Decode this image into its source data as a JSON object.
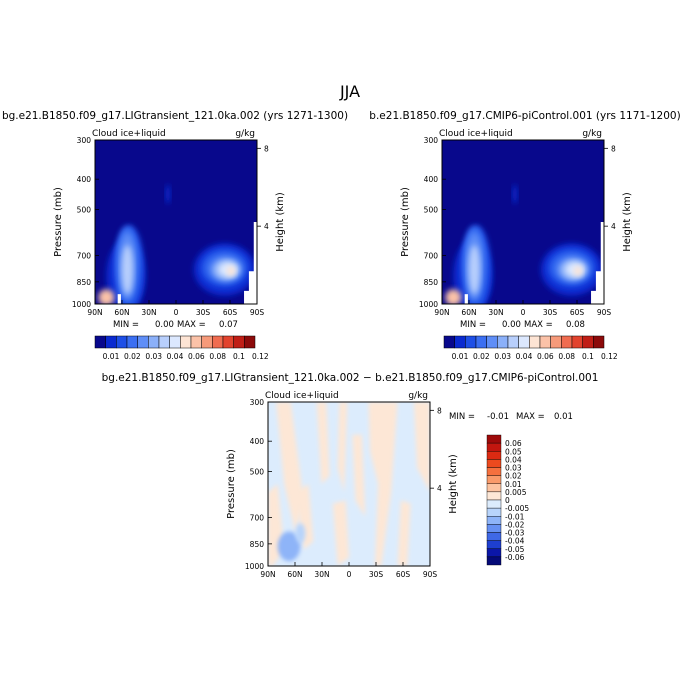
{
  "page": {
    "season": "JJA"
  },
  "chart_data": [
    {
      "type": "heatmap",
      "title": "bg.e21.B1850.f09_g17.LIGtransient_121.0ka.002 (yrs 1271-1300)",
      "field_label": "Cloud ice+liquid",
      "units": "g/kg",
      "ylabel": "Pressure (mb)",
      "y2label": "Height (km)",
      "x_ticks": [
        "90N",
        "60N",
        "30N",
        "0",
        "30S",
        "60S",
        "90S"
      ],
      "y_ticks": [
        "300",
        "400",
        "500",
        "700",
        "850",
        "1000"
      ],
      "y_tick_values": [
        300,
        400,
        500,
        700,
        850,
        1000
      ],
      "ylim": [
        1000,
        300
      ],
      "y_scale": "log",
      "y2_ticks": [
        "8",
        "4"
      ],
      "y2_tick_values": [
        8,
        4
      ],
      "min_label": "MIN =",
      "min_value": "0.00",
      "max_label": "MAX =",
      "max_value": "0.07",
      "colorbar": {
        "labels": [
          "0.01",
          "0.02",
          "0.03",
          "0.04",
          "0.06",
          "0.08",
          "0.1",
          "0.12"
        ],
        "colors": [
          "#08088c",
          "#0a2ad0",
          "#1e4fe6",
          "#3b6ff2",
          "#5f8ef7",
          "#8bb0f9",
          "#b8cffc",
          "#dce8fe",
          "#fde4d4",
          "#fbc2a8",
          "#f69a7a",
          "#f06c50",
          "#e2432e",
          "#c01e16",
          "#8c0a0a"
        ]
      }
    },
    {
      "type": "heatmap",
      "title": "b.e21.B1850.f09_g17.CMIP6-piControl.001 (yrs 1171-1200)",
      "field_label": "Cloud ice+liquid",
      "units": "g/kg",
      "ylabel": "Pressure (mb)",
      "y2label": "Height (km)",
      "x_ticks": [
        "90N",
        "60N",
        "30N",
        "0",
        "30S",
        "60S",
        "90S"
      ],
      "y_ticks": [
        "300",
        "400",
        "500",
        "700",
        "850",
        "1000"
      ],
      "y_tick_values": [
        300,
        400,
        500,
        700,
        850,
        1000
      ],
      "ylim": [
        1000,
        300
      ],
      "y_scale": "log",
      "y2_ticks": [
        "8",
        "4"
      ],
      "y2_tick_values": [
        8,
        4
      ],
      "min_label": "MIN =",
      "min_value": "0.00",
      "max_label": "MAX =",
      "max_value": "0.08",
      "colorbar": {
        "labels": [
          "0.01",
          "0.02",
          "0.03",
          "0.04",
          "0.06",
          "0.08",
          "0.1",
          "0.12"
        ],
        "colors": [
          "#08088c",
          "#0a2ad0",
          "#1e4fe6",
          "#3b6ff2",
          "#5f8ef7",
          "#8bb0f9",
          "#b8cffc",
          "#dce8fe",
          "#fde4d4",
          "#fbc2a8",
          "#f69a7a",
          "#f06c50",
          "#e2432e",
          "#c01e16",
          "#8c0a0a"
        ]
      }
    },
    {
      "type": "heatmap",
      "title": "bg.e21.B1850.f09_g17.LIGtransient_121.0ka.002 − b.e21.B1850.f09_g17.CMIP6-piControl.001",
      "field_label": "Cloud ice+liquid",
      "units": "g/kg",
      "ylabel": "Pressure (mb)",
      "y2label": "Height (km)",
      "x_ticks": [
        "90N",
        "60N",
        "30N",
        "0",
        "30S",
        "60S",
        "90S"
      ],
      "y_ticks": [
        "300",
        "400",
        "500",
        "700",
        "850",
        "1000"
      ],
      "y_tick_values": [
        300,
        400,
        500,
        700,
        850,
        1000
      ],
      "ylim": [
        1000,
        300
      ],
      "y_scale": "log",
      "y2_ticks": [
        "8",
        "4"
      ],
      "y2_tick_values": [
        8,
        4
      ],
      "min_label": "MIN =",
      "min_value": "-0.01",
      "max_label": "MAX =",
      "max_value": "0.01",
      "colorbar": {
        "labels": [
          "0.06",
          "0.05",
          "0.04",
          "0.03",
          "0.02",
          "0.01",
          "0.005",
          "0",
          "-0.005",
          "-0.01",
          "-0.02",
          "-0.03",
          "-0.04",
          "-0.05",
          "-0.06"
        ],
        "colors": [
          "#9e0a0a",
          "#c2160f",
          "#dc2a12",
          "#ec4a1e",
          "#f5703e",
          "#f99a6a",
          "#fcc3a0",
          "#fde7d6",
          "#dcecfd",
          "#b8d4fb",
          "#8eb4f8",
          "#6690f2",
          "#3f68e6",
          "#1e3fd0",
          "#0b16a8",
          "#050a78"
        ]
      }
    }
  ]
}
